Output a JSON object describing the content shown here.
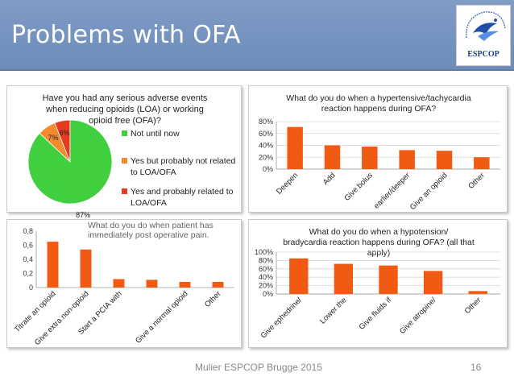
{
  "slide": {
    "title": "Problems with OFA",
    "footer": "Mulier ESPCOP Brugge 2015",
    "page_number": "16",
    "logo_text": "ESPCOP",
    "logo_arc_text": "The European Society for Perioperative Care of the Obese Patient"
  },
  "colors": {
    "header": "#7393c0",
    "bar": "#f05a12",
    "pie_green": "#3fcf3f",
    "pie_orange": "#f38a2e",
    "pie_red": "#e63b1f"
  },
  "chart_data": [
    {
      "type": "pie",
      "title": "Have you had any serious adverse events when reducing opioids (LOA) or working opioid free (OFA)?",
      "title_lines": [
        "Have you had any serious adverse events",
        "when reducing opioids (LOA) or working",
        "opioid free (OFA)?"
      ],
      "slices": [
        {
          "label": "Not until now",
          "value": 87,
          "pct_label": "87%",
          "color": "#3fcf3f"
        },
        {
          "label": "Yes but probably not related to LOA/OFA",
          "label_lines": [
            "Yes but probably not related",
            "to LOA/OFA"
          ],
          "value": 7,
          "pct_label": "7%",
          "color": "#f38a2e"
        },
        {
          "label": "Yes and probably related to LOA/OFA",
          "label_lines": [
            "Yes and probably related to",
            "LOA/OFA"
          ],
          "value": 6,
          "pct_label": "6%",
          "color": "#e63b1f"
        }
      ],
      "legend": "right"
    },
    {
      "type": "bar",
      "title": "What do you do when a hypertensive/tachycardia reaction happens during OFA?",
      "title_lines": [
        "What do you do when a hypertensive/tachycardia",
        "reaction happens during OFA?"
      ],
      "categories": [
        "Deepen",
        "Add",
        "Give bolus",
        "earlier/deeper",
        "Give an opioid",
        "Other"
      ],
      "values": [
        0.71,
        0.4,
        0.38,
        0.32,
        0.31,
        0.2
      ],
      "ylim": [
        0,
        0.8
      ],
      "yticks": [
        "0%",
        "20%",
        "40%",
        "60%",
        "80%"
      ],
      "grid": true
    },
    {
      "type": "bar",
      "title": "What do you do when patient has immediately post operative pain.",
      "title_lines": [
        "What do you do when patient has",
        "immediately post operative pain."
      ],
      "categories": [
        "Titrate an opioid",
        "Give extra non-opioid",
        "Start a PCIA with",
        "",
        "Give a normal opioid",
        "Other"
      ],
      "values": [
        0.65,
        0.54,
        0.12,
        0.11,
        0.08,
        0.08
      ],
      "ylim": [
        0,
        0.8
      ],
      "yticks": [
        "0",
        "0,2",
        "0,4",
        "0,6",
        "0,8"
      ],
      "grid": false
    },
    {
      "type": "bar",
      "title": "What do you do when a hypotension/ bradycardia reaction happens during OFA? (all that apply)",
      "title_lines": [
        "What do you do when a hypotension/",
        "bradycardia reaction happens during OFA? (all that",
        "apply)"
      ],
      "categories": [
        "Give ephedrine/",
        "Lower the",
        "Give fluids if",
        "Give atropine/",
        "Other"
      ],
      "values": [
        0.85,
        0.72,
        0.68,
        0.55,
        0.07
      ],
      "ylim": [
        0,
        1.0
      ],
      "yticks": [
        "0%",
        "20%",
        "40%",
        "60%",
        "80%",
        "100%"
      ],
      "grid": true
    }
  ]
}
